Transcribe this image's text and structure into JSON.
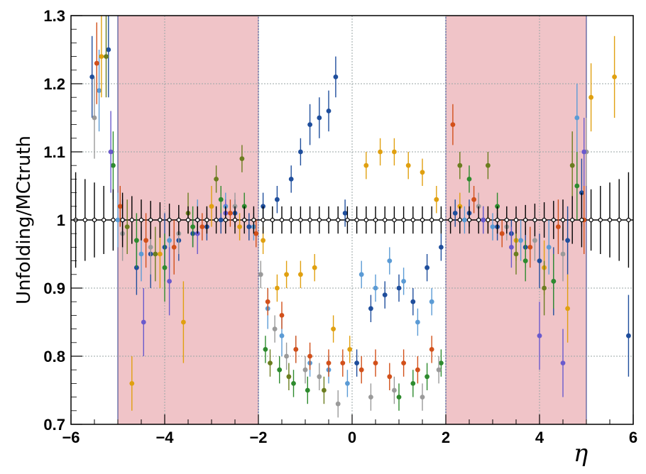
{
  "chart_data": {
    "type": "scatter",
    "title": "",
    "xlabel": "η",
    "ylabel": "Unfolding/MCtruth",
    "xlim": [
      -6,
      6
    ],
    "ylim": [
      0.7,
      1.3
    ],
    "x_ticks": [
      "−6",
      "−4",
      "−2",
      "0",
      "2",
      "4",
      "6"
    ],
    "y_ticks": [
      "0.7",
      "0.8",
      "0.9",
      "1",
      "1.1",
      "1.2",
      "1.3"
    ],
    "grid": true,
    "legend": "none",
    "shaded_regions": [
      {
        "x_range": [
          -5,
          -2
        ],
        "color": "#f0c4c8"
      },
      {
        "x_range": [
          2,
          5
        ],
        "color": "#f0c4c8"
      }
    ],
    "reference_line": {
      "y": 1.0,
      "color": "#000000"
    },
    "series": [
      {
        "color": "#1f4e9c",
        "points": [
          [
            -5.55,
            1.21,
            0.06
          ],
          [
            -5.2,
            1.25,
            0.07
          ],
          [
            -4.9,
            1.0,
            0.03
          ],
          [
            -4.6,
            0.93,
            0.04
          ],
          [
            -4.3,
            0.95,
            0.05
          ],
          [
            -4.0,
            0.96,
            0.05
          ],
          [
            -3.7,
            0.97,
            0.03
          ],
          [
            -3.4,
            0.98,
            0.02
          ],
          [
            -3.1,
            0.99,
            0.02
          ],
          [
            -2.8,
            1.0,
            0.02
          ],
          [
            -2.5,
            1.01,
            0.02
          ],
          [
            -2.2,
            0.99,
            0.02
          ],
          [
            -1.9,
            1.02,
            0.02
          ],
          [
            -1.6,
            1.03,
            0.02
          ],
          [
            -1.3,
            1.06,
            0.02
          ],
          [
            -1.1,
            1.1,
            0.02
          ],
          [
            -0.9,
            1.14,
            0.03
          ],
          [
            -0.7,
            1.15,
            0.03
          ],
          [
            -0.5,
            1.16,
            0.03
          ],
          [
            -0.35,
            1.21,
            0.03
          ],
          [
            -0.15,
            1.01,
            0.02
          ],
          [
            0.1,
            0.79,
            0.02
          ],
          [
            0.4,
            0.87,
            0.02
          ],
          [
            0.7,
            0.89,
            0.02
          ],
          [
            1.0,
            0.9,
            0.02
          ],
          [
            1.3,
            0.88,
            0.02
          ],
          [
            1.6,
            0.93,
            0.02
          ],
          [
            1.9,
            0.96,
            0.02
          ],
          [
            2.2,
            1.01,
            0.02
          ],
          [
            2.5,
            1.01,
            0.02
          ],
          [
            2.8,
            1.0,
            0.02
          ],
          [
            3.1,
            0.99,
            0.02
          ],
          [
            3.4,
            0.98,
            0.02
          ],
          [
            3.7,
            0.96,
            0.03
          ],
          [
            4.0,
            0.94,
            0.04
          ],
          [
            4.3,
            0.91,
            0.05
          ],
          [
            4.6,
            0.97,
            0.05
          ],
          [
            4.9,
            1.04,
            0.05
          ],
          [
            5.9,
            0.83,
            0.06
          ]
        ]
      },
      {
        "color": "#5b9bd5",
        "points": [
          [
            -5.4,
            1.19,
            0.06
          ],
          [
            -5.0,
            1.0,
            0.04
          ],
          [
            -4.5,
            0.95,
            0.04
          ],
          [
            -3.9,
            0.97,
            0.04
          ],
          [
            -3.3,
            1.0,
            0.03
          ],
          [
            -2.7,
            1.02,
            0.02
          ],
          [
            -2.1,
            0.99,
            0.02
          ],
          [
            -1.8,
            0.87,
            0.03
          ],
          [
            -1.5,
            0.83,
            0.03
          ],
          [
            -1.2,
            0.81,
            0.02
          ],
          [
            -0.9,
            0.79,
            0.02
          ],
          [
            -0.5,
            0.78,
            0.02
          ],
          [
            -0.1,
            0.76,
            0.02
          ],
          [
            0.2,
            0.92,
            0.02
          ],
          [
            0.5,
            0.9,
            0.02
          ],
          [
            0.8,
            0.94,
            0.02
          ],
          [
            1.1,
            0.91,
            0.02
          ],
          [
            1.4,
            0.85,
            0.02
          ],
          [
            1.7,
            0.88,
            0.02
          ],
          [
            2.4,
            1.0,
            0.02
          ],
          [
            3.0,
            0.99,
            0.02
          ],
          [
            3.6,
            0.97,
            0.03
          ],
          [
            4.2,
            0.96,
            0.04
          ],
          [
            4.8,
            1.15,
            0.05
          ]
        ]
      },
      {
        "color": "#e0a010",
        "points": [
          [
            -5.35,
            1.24,
            0.06
          ],
          [
            -4.7,
            0.76,
            0.04
          ],
          [
            -4.1,
            0.95,
            0.05
          ],
          [
            -3.6,
            0.85,
            0.06
          ],
          [
            -3.0,
            1.02,
            0.03
          ],
          [
            -2.4,
            0.99,
            0.02
          ],
          [
            -1.9,
            0.97,
            0.02
          ],
          [
            -1.6,
            0.9,
            0.02
          ],
          [
            -1.4,
            0.92,
            0.02
          ],
          [
            -1.1,
            0.92,
            0.02
          ],
          [
            -0.8,
            0.93,
            0.02
          ],
          [
            -0.4,
            0.84,
            0.02
          ],
          [
            -0.05,
            0.81,
            0.02
          ],
          [
            0.3,
            1.08,
            0.02
          ],
          [
            0.6,
            1.1,
            0.02
          ],
          [
            0.9,
            1.1,
            0.02
          ],
          [
            1.2,
            1.08,
            0.02
          ],
          [
            1.5,
            1.07,
            0.02
          ],
          [
            1.8,
            1.03,
            0.02
          ],
          [
            2.3,
            1.02,
            0.02
          ],
          [
            2.9,
            1.0,
            0.02
          ],
          [
            3.5,
            0.97,
            0.03
          ],
          [
            4.1,
            0.93,
            0.04
          ],
          [
            4.6,
            0.87,
            0.05
          ],
          [
            5.1,
            1.18,
            0.05
          ],
          [
            5.6,
            1.21,
            0.06
          ]
        ]
      },
      {
        "color": "#d2501a",
        "points": [
          [
            -5.45,
            1.23,
            0.06
          ],
          [
            -4.95,
            1.02,
            0.03
          ],
          [
            -4.4,
            0.97,
            0.04
          ],
          [
            -3.8,
            0.96,
            0.04
          ],
          [
            -3.2,
            0.99,
            0.02
          ],
          [
            -2.6,
            1.01,
            0.02
          ],
          [
            -2.05,
            0.98,
            0.02
          ],
          [
            -1.8,
            0.88,
            0.02
          ],
          [
            -1.5,
            0.86,
            0.02
          ],
          [
            -1.2,
            0.81,
            0.02
          ],
          [
            -0.9,
            0.8,
            0.02
          ],
          [
            -0.5,
            0.79,
            0.02
          ],
          [
            -0.2,
            0.79,
            0.02
          ],
          [
            0.2,
            0.78,
            0.02
          ],
          [
            0.5,
            0.79,
            0.02
          ],
          [
            0.8,
            0.77,
            0.02
          ],
          [
            1.1,
            0.79,
            0.02
          ],
          [
            1.4,
            0.78,
            0.02
          ],
          [
            1.7,
            0.81,
            0.02
          ],
          [
            2.15,
            1.14,
            0.03
          ],
          [
            2.6,
            1.03,
            0.02
          ],
          [
            3.2,
            0.98,
            0.02
          ],
          [
            3.8,
            0.96,
            0.03
          ],
          [
            4.4,
            0.99,
            0.04
          ],
          [
            4.95,
            1.0,
            0.05
          ]
        ]
      },
      {
        "color": "#2e8b2e",
        "points": [
          [
            -5.1,
            1.08,
            0.05
          ],
          [
            -4.6,
            0.97,
            0.04
          ],
          [
            -4.0,
            0.93,
            0.05
          ],
          [
            -3.4,
            0.99,
            0.03
          ],
          [
            -2.8,
            1.03,
            0.02
          ],
          [
            -2.3,
            1.02,
            0.02
          ],
          [
            -1.85,
            0.81,
            0.02
          ],
          [
            -1.55,
            0.78,
            0.02
          ],
          [
            -1.25,
            0.76,
            0.02
          ],
          [
            -0.95,
            0.75,
            0.02
          ],
          [
            1.0,
            0.74,
            0.02
          ],
          [
            1.3,
            0.76,
            0.02
          ],
          [
            1.6,
            0.77,
            0.02
          ],
          [
            1.9,
            0.79,
            0.02
          ],
          [
            2.5,
            1.06,
            0.02
          ],
          [
            3.1,
            1.02,
            0.02
          ],
          [
            3.7,
            0.94,
            0.03
          ],
          [
            4.3,
            0.91,
            0.04
          ],
          [
            4.8,
            1.05,
            0.05
          ]
        ]
      },
      {
        "color": "#6b7d1f",
        "points": [
          [
            -5.25,
            1.24,
            0.06
          ],
          [
            -4.8,
            0.99,
            0.04
          ],
          [
            -4.2,
            0.95,
            0.04
          ],
          [
            -3.5,
            1.01,
            0.03
          ],
          [
            -2.9,
            1.06,
            0.02
          ],
          [
            -2.35,
            1.09,
            0.02
          ],
          [
            -1.75,
            0.79,
            0.02
          ],
          [
            -1.35,
            0.77,
            0.02
          ],
          [
            -0.6,
            0.75,
            0.02
          ],
          [
            2.3,
            1.08,
            0.02
          ],
          [
            2.9,
            1.08,
            0.02
          ],
          [
            3.5,
            0.95,
            0.03
          ],
          [
            4.1,
            0.9,
            0.04
          ],
          [
            4.7,
            1.08,
            0.05
          ]
        ]
      },
      {
        "color": "#9a9a9a",
        "points": [
          [
            -5.5,
            1.15,
            0.06
          ],
          [
            -4.9,
            0.98,
            0.04
          ],
          [
            -4.3,
            0.96,
            0.04
          ],
          [
            -3.7,
            0.98,
            0.03
          ],
          [
            -3.1,
            1.0,
            0.02
          ],
          [
            -2.5,
            1.02,
            0.02
          ],
          [
            -1.95,
            0.92,
            0.02
          ],
          [
            -1.65,
            0.84,
            0.02
          ],
          [
            -1.4,
            0.8,
            0.02
          ],
          [
            -1.0,
            0.78,
            0.02
          ],
          [
            -0.7,
            0.77,
            0.02
          ],
          [
            -0.3,
            0.73,
            0.02
          ],
          [
            0.4,
            0.74,
            0.02
          ],
          [
            0.9,
            0.75,
            0.02
          ],
          [
            1.5,
            0.74,
            0.02
          ],
          [
            1.85,
            0.78,
            0.02
          ],
          [
            2.7,
            1.02,
            0.02
          ],
          [
            3.3,
            0.99,
            0.02
          ],
          [
            3.9,
            0.97,
            0.03
          ],
          [
            4.5,
            0.95,
            0.04
          ],
          [
            5.0,
            1.1,
            0.05
          ]
        ]
      },
      {
        "color": "#6a5acd",
        "points": [
          [
            -5.15,
            1.1,
            0.06
          ],
          [
            -4.45,
            0.85,
            0.05
          ],
          [
            -3.9,
            0.91,
            0.05
          ],
          [
            -3.3,
            0.98,
            0.03
          ],
          [
            -2.7,
            1.01,
            0.02
          ],
          [
            2.8,
            1.0,
            0.02
          ],
          [
            3.4,
            0.96,
            0.03
          ],
          [
            4.0,
            0.83,
            0.05
          ],
          [
            4.5,
            0.79,
            0.05
          ],
          [
            4.95,
            1.1,
            0.05
          ]
        ]
      },
      {
        "color": "#000000",
        "hollow": true,
        "points": [
          [
            -5.9,
            1.0,
            0.07
          ],
          [
            -5.7,
            1.0,
            0.06
          ],
          [
            -5.5,
            1.0,
            0.055
          ],
          [
            -5.3,
            1.0,
            0.05
          ],
          [
            -5.1,
            1.0,
            0.045
          ],
          [
            -4.9,
            1.0,
            0.04
          ],
          [
            -4.7,
            1.0,
            0.035
          ],
          [
            -4.5,
            1.0,
            0.03
          ],
          [
            -4.3,
            1.0,
            0.028
          ],
          [
            -4.1,
            1.0,
            0.026
          ],
          [
            -3.9,
            1.0,
            0.024
          ],
          [
            -3.7,
            1.0,
            0.022
          ],
          [
            -3.5,
            1.0,
            0.02
          ],
          [
            -3.3,
            1.0,
            0.02
          ],
          [
            -3.1,
            1.0,
            0.02
          ],
          [
            -2.9,
            1.0,
            0.02
          ],
          [
            -2.7,
            1.0,
            0.02
          ],
          [
            -2.5,
            1.0,
            0.02
          ],
          [
            -2.3,
            1.0,
            0.02
          ],
          [
            -2.1,
            1.0,
            0.02
          ],
          [
            -1.9,
            1.0,
            0.02
          ],
          [
            -1.7,
            1.0,
            0.02
          ],
          [
            -1.5,
            1.0,
            0.02
          ],
          [
            -1.3,
            1.0,
            0.02
          ],
          [
            -1.1,
            1.0,
            0.02
          ],
          [
            -0.9,
            1.0,
            0.02
          ],
          [
            -0.7,
            1.0,
            0.02
          ],
          [
            -0.5,
            1.0,
            0.02
          ],
          [
            -0.3,
            1.0,
            0.02
          ],
          [
            -0.1,
            1.0,
            0.02
          ],
          [
            0.1,
            1.0,
            0.02
          ],
          [
            0.3,
            1.0,
            0.02
          ],
          [
            0.5,
            1.0,
            0.02
          ],
          [
            0.7,
            1.0,
            0.02
          ],
          [
            0.9,
            1.0,
            0.02
          ],
          [
            1.1,
            1.0,
            0.02
          ],
          [
            1.3,
            1.0,
            0.02
          ],
          [
            1.5,
            1.0,
            0.02
          ],
          [
            1.7,
            1.0,
            0.02
          ],
          [
            1.9,
            1.0,
            0.02
          ],
          [
            2.1,
            1.0,
            0.02
          ],
          [
            2.3,
            1.0,
            0.02
          ],
          [
            2.5,
            1.0,
            0.02
          ],
          [
            2.7,
            1.0,
            0.02
          ],
          [
            2.9,
            1.0,
            0.02
          ],
          [
            3.1,
            1.0,
            0.02
          ],
          [
            3.3,
            1.0,
            0.02
          ],
          [
            3.5,
            1.0,
            0.02
          ],
          [
            3.7,
            1.0,
            0.022
          ],
          [
            3.9,
            1.0,
            0.024
          ],
          [
            4.1,
            1.0,
            0.026
          ],
          [
            4.3,
            1.0,
            0.028
          ],
          [
            4.5,
            1.0,
            0.03
          ],
          [
            4.7,
            1.0,
            0.035
          ],
          [
            4.9,
            1.0,
            0.04
          ],
          [
            5.1,
            1.0,
            0.045
          ],
          [
            5.3,
            1.0,
            0.05
          ],
          [
            5.5,
            1.0,
            0.055
          ],
          [
            5.7,
            1.0,
            0.06
          ],
          [
            5.9,
            1.0,
            0.07
          ]
        ]
      }
    ]
  }
}
